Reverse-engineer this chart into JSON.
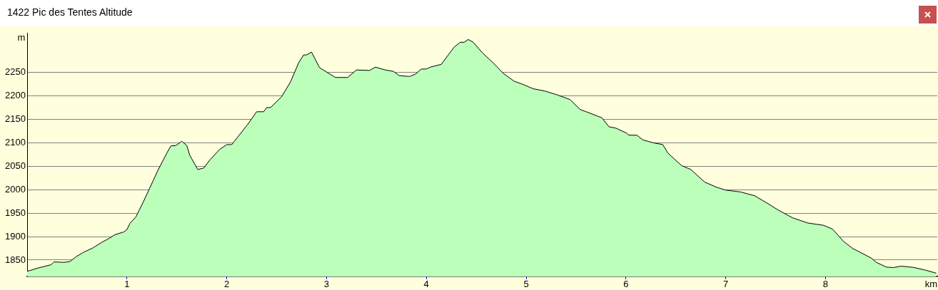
{
  "chart_data": {
    "type": "area",
    "title": "1422 Pic des Tentes Altitude",
    "xlabel": "km",
    "ylabel": "m",
    "xlim": [
      0,
      9.12
    ],
    "xticks": [
      1,
      2,
      3,
      4,
      5,
      6,
      7,
      8
    ],
    "ylim": [
      1815,
      2333
    ],
    "yticks": [
      1850,
      1900,
      1950,
      2000,
      2050,
      2100,
      2150,
      2200,
      2250
    ],
    "grid": "y",
    "legend": false,
    "series": [
      {
        "color": "#bbffbb",
        "x": [
          0,
          0.11,
          0.24,
          0.27,
          0.37,
          0.43,
          0.49,
          0.56,
          0.66,
          0.75,
          0.82,
          0.88,
          0.97,
          1.0,
          1.03,
          1.09,
          1.16,
          1.23,
          1.31,
          1.4,
          1.44,
          1.49,
          1.55,
          1.6,
          1.63,
          1.71,
          1.77,
          1.83,
          1.93,
          2.0,
          2.05,
          2.11,
          2.21,
          2.3,
          2.37,
          2.4,
          2.44,
          2.55,
          2.64,
          2.72,
          2.77,
          2.8,
          2.85,
          2.93,
          3.02,
          3.09,
          3.21,
          3.3,
          3.43,
          3.49,
          3.59,
          3.67,
          3.73,
          3.83,
          3.89,
          3.95,
          4.0,
          4.04,
          4.15,
          4.22,
          4.28,
          4.34,
          4.38,
          4.42,
          4.47,
          4.56,
          4.67,
          4.77,
          4.88,
          4.96,
          5.07,
          5.19,
          5.31,
          5.44,
          5.54,
          5.7,
          5.76,
          5.83,
          5.9,
          6.01,
          6.03,
          6.11,
          6.17,
          6.27,
          6.37,
          6.42,
          6.56,
          6.65,
          6.79,
          6.91,
          7.0,
          7.15,
          7.29,
          7.41,
          7.53,
          7.67,
          7.82,
          7.98,
          8.07,
          8.18,
          8.27,
          8.46,
          8.51,
          8.61,
          8.68,
          8.76,
          8.89,
          9.01,
          9.11
        ],
        "values": [
          1826,
          1833,
          1840,
          1846,
          1845,
          1847,
          1857,
          1866,
          1876,
          1888,
          1896,
          1904,
          1910,
          1915,
          1928,
          1942,
          1972,
          2004,
          2041,
          2078,
          2093,
          2094,
          2103,
          2094,
          2073,
          2043,
          2046,
          2063,
          2086,
          2096,
          2096,
          2112,
          2139,
          2166,
          2166,
          2175,
          2175,
          2198,
          2230,
          2270,
          2287,
          2287,
          2293,
          2260,
          2248,
          2239,
          2239,
          2255,
          2254,
          2261,
          2255,
          2252,
          2243,
          2241,
          2246,
          2257,
          2257,
          2261,
          2267,
          2287,
          2304,
          2314,
          2314,
          2320,
          2314,
          2292,
          2270,
          2248,
          2231,
          2225,
          2215,
          2210,
          2202,
          2192,
          2171,
          2158,
          2153,
          2134,
          2131,
          2120,
          2116,
          2116,
          2106,
          2100,
          2096,
          2078,
          2051,
          2043,
          2016,
          2005,
          1999,
          1995,
          1987,
          1972,
          1956,
          1940,
          1929,
          1924,
          1916,
          1890,
          1875,
          1854,
          1845,
          1835,
          1834,
          1837,
          1834,
          1828,
          1822
        ]
      }
    ]
  }
}
